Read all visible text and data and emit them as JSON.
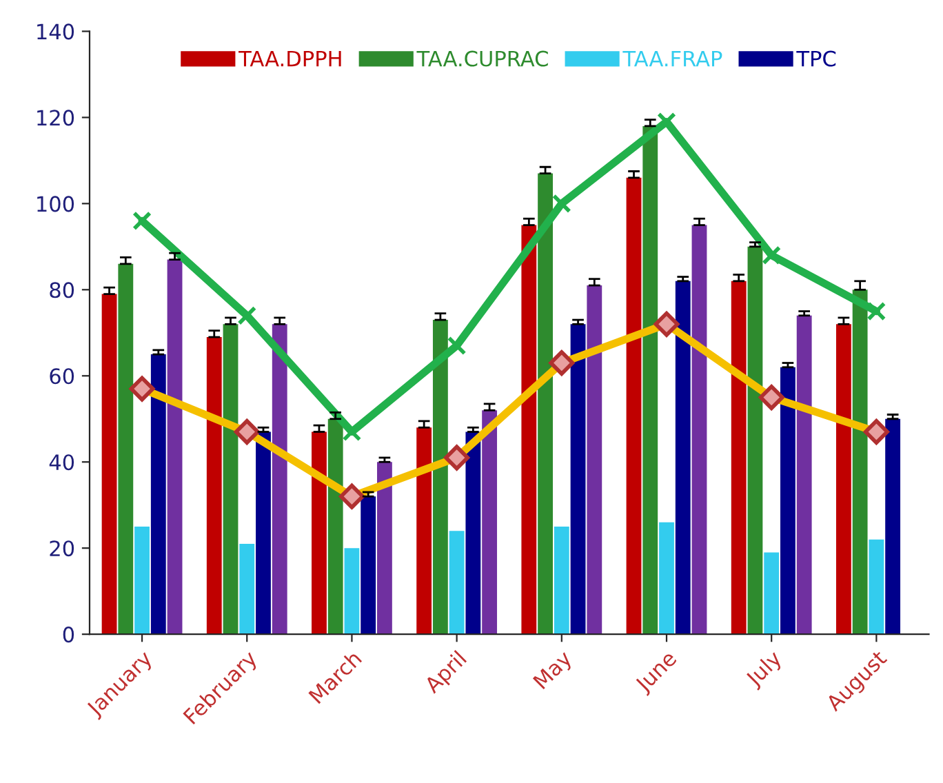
{
  "chart_data": {
    "type": "bar",
    "categories": [
      "January",
      "February",
      "March",
      "April",
      "May",
      "June",
      "July",
      "August"
    ],
    "series": [
      {
        "name": "TAA.DPPH",
        "color": "#c00000",
        "values": [
          79,
          69,
          47,
          48,
          95,
          106,
          82,
          72
        ],
        "errors": [
          1.5,
          1.5,
          1.5,
          1.5,
          1.5,
          1.5,
          1.5,
          1.5
        ]
      },
      {
        "name": "TAA.CUPRAC",
        "color": "#2e8b2e",
        "values": [
          86,
          72,
          50,
          73,
          107,
          118,
          90,
          80
        ],
        "errors": [
          1.5,
          1.5,
          1.5,
          1.5,
          1.5,
          1.5,
          1,
          2
        ]
      },
      {
        "name": "TAA.FRAP",
        "color": "#33ccee",
        "values": [
          25,
          21,
          20,
          24,
          25,
          26,
          19,
          22
        ]
      },
      {
        "name": "TPC",
        "color": "#00008b",
        "values": [
          65,
          47,
          32,
          47,
          72,
          82,
          62,
          50
        ],
        "errors": [
          1,
          1,
          1,
          1,
          1,
          1,
          1,
          1
        ]
      },
      {
        "color": "#7030a0",
        "values": [
          87,
          72,
          40,
          52,
          81,
          95,
          74,
          null
        ],
        "errors": [
          1.5,
          1.5,
          1,
          1.5,
          1.5,
          1.5,
          1,
          null
        ]
      },
      {
        "type": "line",
        "color": "#22b14c",
        "marker": "cross",
        "values": [
          96,
          74,
          47,
          67,
          100,
          119,
          88,
          75
        ]
      },
      {
        "type": "line",
        "color": "#f5c000",
        "marker": "diamond",
        "values": [
          57,
          47,
          32,
          41,
          63,
          72,
          55,
          47
        ]
      }
    ],
    "ylim": [
      0,
      140
    ],
    "yticks": [
      0,
      20,
      40,
      60,
      80,
      100,
      120,
      140
    ],
    "grid": false,
    "legend": "top"
  }
}
